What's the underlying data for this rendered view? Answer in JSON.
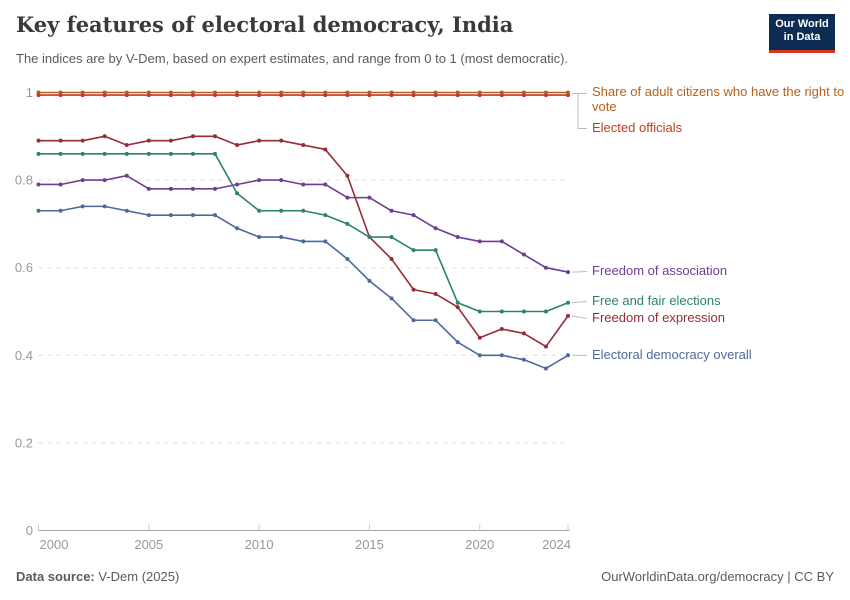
{
  "header": {
    "title": "Key features of electoral democracy, India",
    "subtitle": "The indices are by V-Dem, based on expert estimates, and range from 0 to 1 (most democratic)."
  },
  "logo": {
    "line1": "Our World",
    "line2": "in Data"
  },
  "footer": {
    "source_label": "Data source:",
    "source_value": "V-Dem (2025)",
    "right": "OurWorldinData.org/democracy | CC BY"
  },
  "chart_data": {
    "type": "line",
    "title": "Key features of electoral democracy, India",
    "x": [
      2000,
      2001,
      2002,
      2003,
      2004,
      2005,
      2006,
      2007,
      2008,
      2009,
      2010,
      2011,
      2012,
      2013,
      2014,
      2015,
      2016,
      2017,
      2018,
      2019,
      2020,
      2021,
      2022,
      2023,
      2024
    ],
    "xticks": [
      2000,
      2005,
      2010,
      2015,
      2020,
      2024
    ],
    "yticks": [
      0,
      0.2,
      0.4,
      0.6,
      0.8,
      1
    ],
    "ylim": [
      0,
      1
    ],
    "grid": "dashed-horizontal",
    "legend": "direct-labels-right",
    "series": [
      {
        "name": "Share of adult citizens who have the right to vote",
        "color": "#B5621B",
        "render_offset_y": 0,
        "values": [
          1,
          1,
          1,
          1,
          1,
          1,
          1,
          1,
          1,
          1,
          1,
          1,
          1,
          1,
          1,
          1,
          1,
          1,
          1,
          1,
          1,
          1,
          1,
          1,
          1
        ]
      },
      {
        "name": "Elected officials",
        "color": "#BC3F26",
        "render_offset_y": 2.6,
        "values": [
          1,
          1,
          1,
          1,
          1,
          1,
          1,
          1,
          1,
          1,
          1,
          1,
          1,
          1,
          1,
          1,
          1,
          1,
          1,
          1,
          1,
          1,
          1,
          1,
          1
        ]
      },
      {
        "name": "Freedom of association",
        "color": "#6D3E91",
        "render_offset_y": 0,
        "values": [
          0.79,
          0.79,
          0.8,
          0.8,
          0.81,
          0.78,
          0.78,
          0.78,
          0.78,
          0.79,
          0.8,
          0.8,
          0.79,
          0.79,
          0.76,
          0.76,
          0.73,
          0.72,
          0.69,
          0.67,
          0.66,
          0.66,
          0.63,
          0.6,
          0.59
        ]
      },
      {
        "name": "Free and fair elections",
        "color": "#2C8465",
        "render_offset_y": 0,
        "values": [
          0.86,
          0.86,
          0.86,
          0.86,
          0.86,
          0.86,
          0.86,
          0.86,
          0.86,
          0.77,
          0.73,
          0.73,
          0.73,
          0.72,
          0.7,
          0.67,
          0.67,
          0.64,
          0.64,
          0.52,
          0.5,
          0.5,
          0.5,
          0.5,
          0.52
        ]
      },
      {
        "name": "Freedom of expression",
        "color": "#962D34",
        "render_offset_y": 0,
        "values": [
          0.89,
          0.89,
          0.89,
          0.9,
          0.88,
          0.89,
          0.89,
          0.9,
          0.9,
          0.88,
          0.89,
          0.89,
          0.88,
          0.87,
          0.81,
          0.67,
          0.62,
          0.55,
          0.54,
          0.51,
          0.44,
          0.46,
          0.45,
          0.42,
          0.49
        ]
      },
      {
        "name": "Electoral democracy overall",
        "color": "#4C6A9C",
        "render_offset_y": 0,
        "values": [
          0.73,
          0.73,
          0.74,
          0.74,
          0.73,
          0.72,
          0.72,
          0.72,
          0.72,
          0.69,
          0.67,
          0.67,
          0.66,
          0.66,
          0.62,
          0.57,
          0.53,
          0.48,
          0.48,
          0.43,
          0.4,
          0.4,
          0.39,
          0.37,
          0.4
        ]
      }
    ]
  }
}
